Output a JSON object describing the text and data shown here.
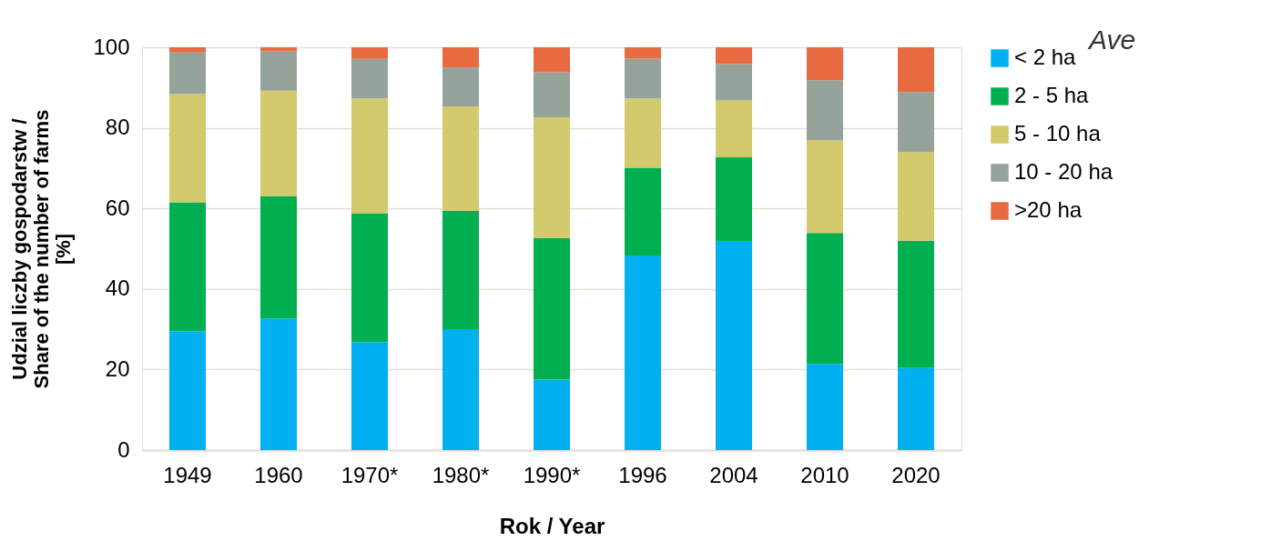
{
  "chart_data": {
    "type": "bar",
    "stacked": true,
    "xlabel": "Rok / Year",
    "ylabel": "Udzial liczby gospodarstw /\nShare of the number of farms\n[%]",
    "categories": [
      "1949",
      "1960",
      "1970*",
      "1980*",
      "1990*",
      "1996",
      "2004",
      "2010",
      "2020"
    ],
    "series": [
      {
        "name": "< 2 ha",
        "color": "#00b0f0",
        "values": [
          29.5,
          32.7,
          26.8,
          30.0,
          17.5,
          48.3,
          51.9,
          21.4,
          20.4
        ]
      },
      {
        "name": "2 - 5 ha",
        "color": "#00b050",
        "values": [
          32.0,
          30.3,
          32.0,
          29.4,
          35.1,
          21.8,
          20.8,
          32.5,
          31.6
        ]
      },
      {
        "name": "5 - 10 ha",
        "color": "#d3ca6d",
        "values": [
          26.9,
          26.2,
          28.5,
          25.9,
          30.0,
          17.2,
          14.1,
          23.0,
          22.0
        ]
      },
      {
        "name": "10 - 20 ha",
        "color": "#95a39b",
        "values": [
          10.3,
          9.8,
          9.8,
          9.7,
          11.2,
          9.9,
          9.1,
          14.9,
          14.9
        ]
      },
      {
        "name": ">20 ha",
        "color": "#e86a41",
        "values": [
          1.3,
          1.0,
          2.9,
          5.0,
          6.2,
          2.8,
          4.1,
          8.2,
          11.1
        ]
      }
    ],
    "ylim": [
      0,
      100
    ],
    "yticks": [
      0,
      20,
      40,
      60,
      80,
      100
    ],
    "grid": "y",
    "legend": "right",
    "annotations": [
      "Ave"
    ]
  }
}
